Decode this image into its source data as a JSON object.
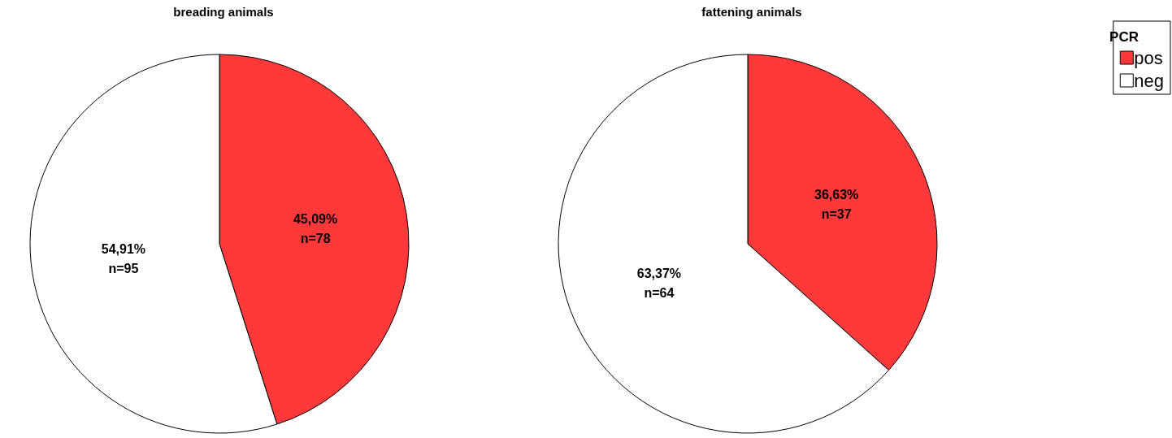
{
  "chart_data": [
    {
      "type": "pie",
      "title": "breading animals",
      "categories": [
        null,
        null
      ],
      "values": [
        78,
        95
      ],
      "colors": [
        "#ff3939",
        "#ffffff"
      ],
      "value_labels": [
        "45,09%\nn=78",
        "54,91%\nn=95"
      ]
    },
    {
      "type": "pie",
      "title": "fattening animals",
      "categories": [
        "pos",
        "neg"
      ],
      "values": [
        37,
        64
      ],
      "colors": [
        "#ff3939",
        "#ffffff"
      ],
      "value_labels": [
        "36,63%\nn=37",
        "63,37%\nn=64"
      ],
      "legend": "top right",
      "legend_title": "PCR"
    }
  ]
}
